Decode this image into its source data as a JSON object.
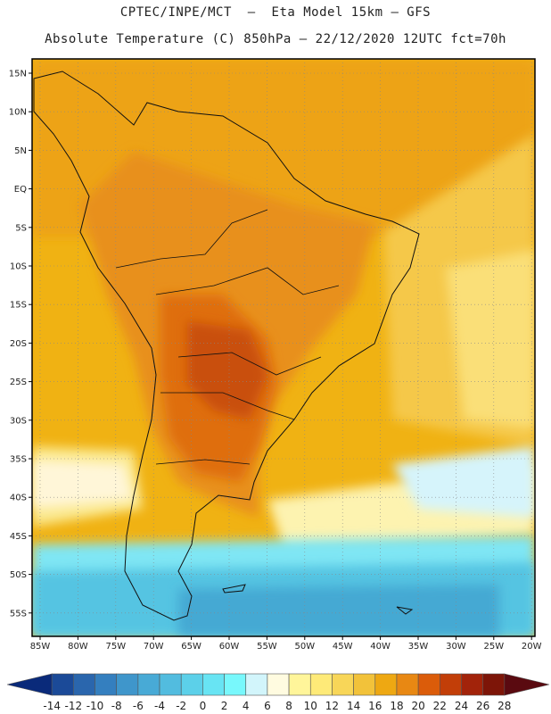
{
  "title_line1": "CPTEC/INPE/MCT  –  Eta Model 15km – GFS",
  "title_line2": "Absolute Temperature (C) 850hPa – 22/12/2020 12UTC fct=70h",
  "lat_labels": [
    "15N",
    "10N",
    "5N",
    "EQ",
    "5S",
    "10S",
    "15S",
    "20S",
    "25S",
    "30S",
    "35S",
    "40S",
    "45S",
    "50S",
    "55S"
  ],
  "lon_labels": [
    "85W",
    "80W",
    "75W",
    "70W",
    "65W",
    "60W",
    "55W",
    "50W",
    "45W",
    "40W",
    "35W",
    "30W",
    "25W",
    "20W"
  ],
  "colorbar": {
    "values": [
      "-14",
      "-12",
      "-10",
      "-8",
      "-6",
      "-4",
      "-2",
      "0",
      "2",
      "4",
      "6",
      "8",
      "10",
      "12",
      "14",
      "16",
      "18",
      "20",
      "22",
      "24",
      "26",
      "28"
    ],
    "colors": [
      "#0a2a7a",
      "#1b4a98",
      "#2a66ad",
      "#347fbf",
      "#3f96cb",
      "#48aad6",
      "#52bcdf",
      "#5cd0e9",
      "#68e4f3",
      "#78f8fc",
      "#d2f5fb",
      "#fffbe0",
      "#fff59a",
      "#feea78",
      "#f8d658",
      "#f2c23a",
      "#eea812",
      "#e88813",
      "#db5c0a",
      "#c23e08",
      "#a2230a",
      "#7d1508",
      "#5a0a10"
    ]
  }
}
